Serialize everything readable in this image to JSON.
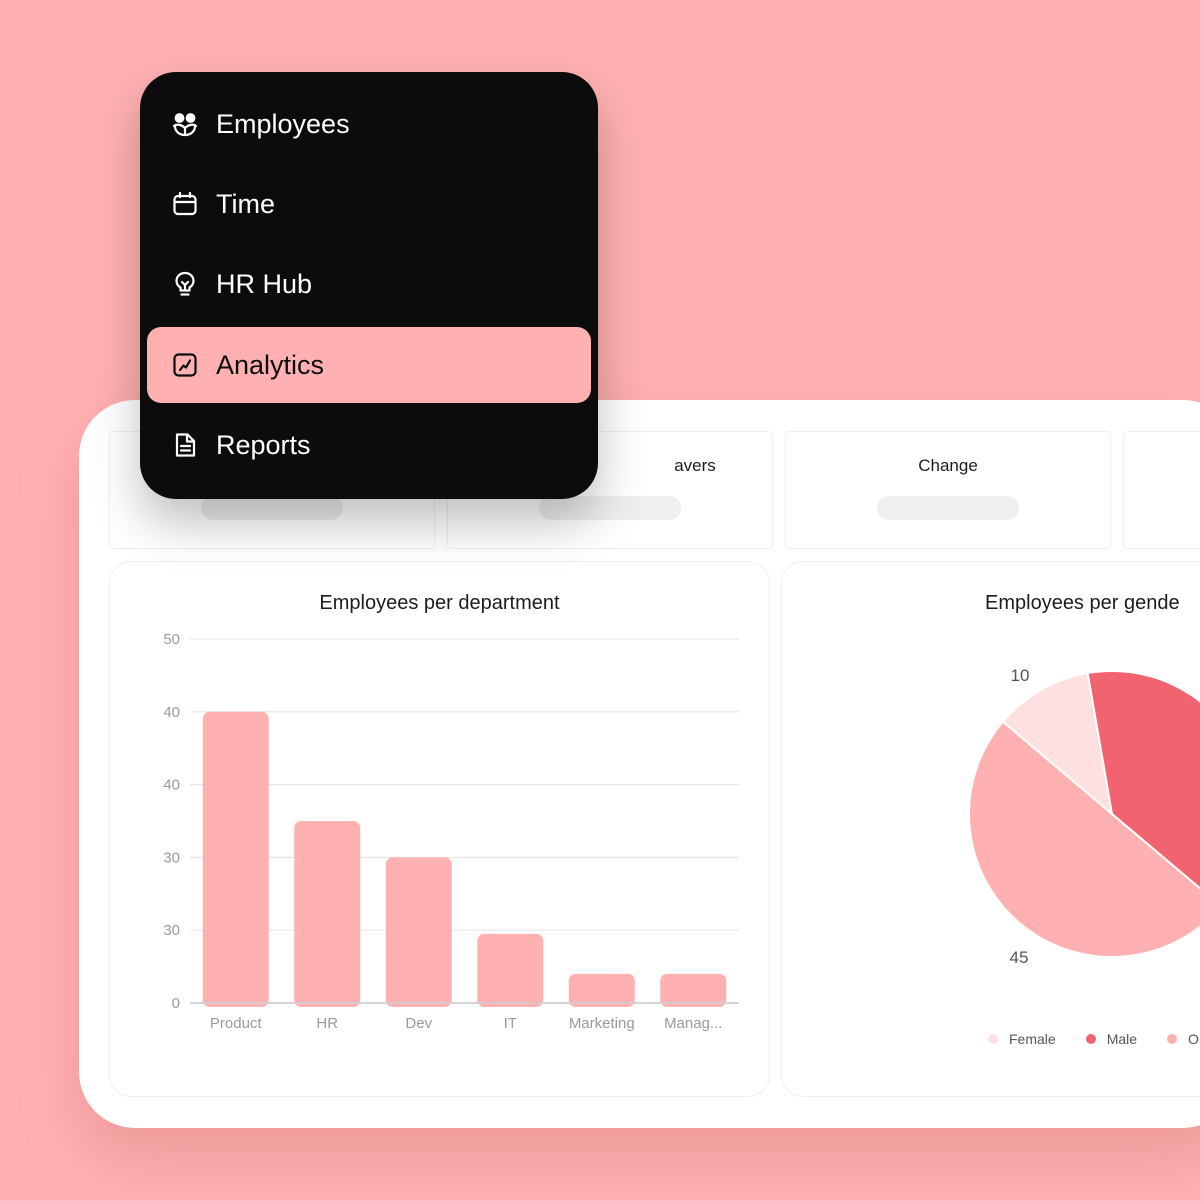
{
  "nav": {
    "items": [
      {
        "label": "Employees",
        "icon": "employees-icon",
        "active": false
      },
      {
        "label": "Time",
        "icon": "calendar-icon",
        "active": false
      },
      {
        "label": "HR Hub",
        "icon": "lightbulb-icon",
        "active": false
      },
      {
        "label": "Analytics",
        "icon": "analytics-icon",
        "active": true
      },
      {
        "label": "Reports",
        "icon": "document-icon",
        "active": false
      }
    ]
  },
  "stats": {
    "cards": [
      {
        "title": ""
      },
      {
        "title": "avers"
      },
      {
        "title": "Change"
      },
      {
        "title": ""
      }
    ]
  },
  "colors": {
    "background": "#ffb1b2",
    "bar": "#ffb1b2",
    "female": "#ffe0e0",
    "male": "#f0636f",
    "other": "#ffb1b2",
    "menu_bg": "#0c0c0c"
  },
  "chart_data": [
    {
      "type": "bar",
      "title": "Employees per department",
      "categories": [
        "Product",
        "HR",
        "Dev",
        "IT",
        "Marketing",
        "Manag..."
      ],
      "values": [
        40,
        25,
        20,
        9.5,
        4,
        4
      ],
      "y_tick_labels": [
        "0",
        "30",
        "30",
        "40",
        "40",
        "50"
      ],
      "ylim": [
        0,
        50
      ],
      "grid": true,
      "xlabel": "",
      "ylabel": ""
    },
    {
      "type": "pie",
      "title": "Employees per gende",
      "slices": [
        {
          "label": "Female",
          "value": 10
        },
        {
          "label": "Male",
          "value": 35
        },
        {
          "label": "O",
          "value": 45
        }
      ],
      "data_labels": [
        "10",
        "45"
      ],
      "legend": [
        "Female",
        "Male",
        "O"
      ],
      "legend_position": "bottom"
    }
  ]
}
